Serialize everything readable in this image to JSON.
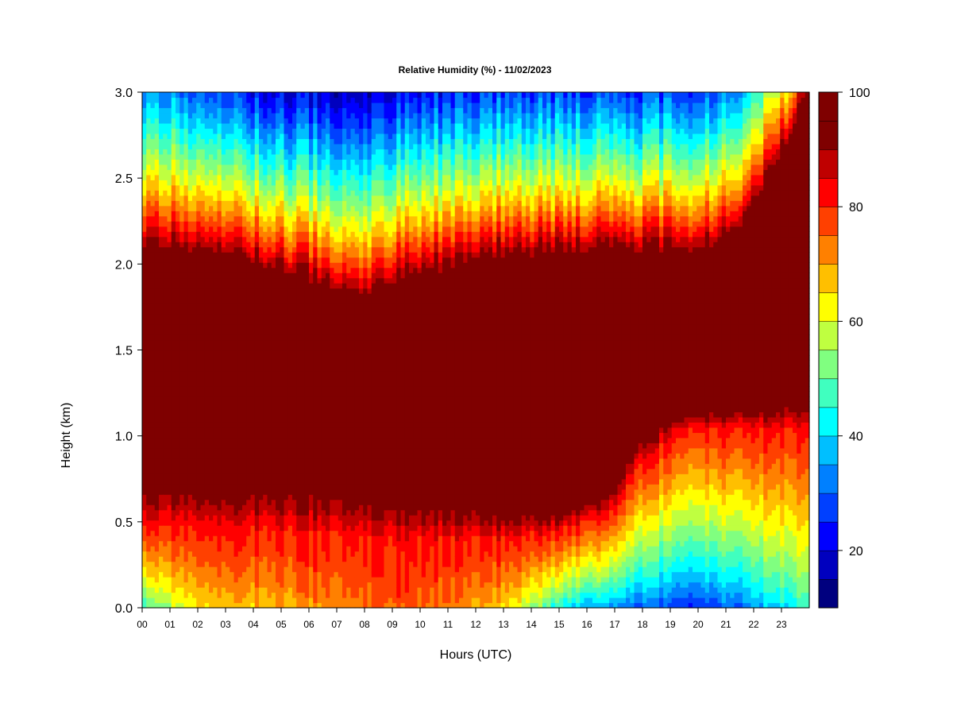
{
  "chart_data": {
    "type": "heatmap",
    "title": "Relative Humidity (%) - 11/02/2023",
    "xlabel": "Hours (UTC)",
    "ylabel": "Height (km)",
    "xlim": [
      0,
      24
    ],
    "ylim": [
      0,
      3
    ],
    "x_ticks": [
      "00",
      "01",
      "02",
      "03",
      "04",
      "05",
      "06",
      "07",
      "08",
      "09",
      "10",
      "11",
      "12",
      "13",
      "14",
      "15",
      "16",
      "17",
      "18",
      "19",
      "20",
      "21",
      "22",
      "23"
    ],
    "y_ticks": [
      "0.0",
      "0.5",
      "1.0",
      "1.5",
      "2.0",
      "2.5",
      "3.0"
    ],
    "colorbar": {
      "min": 10,
      "max": 100,
      "step": 5,
      "tick_labels": [
        "20",
        "40",
        "60",
        "80",
        "100"
      ],
      "tick_values": [
        20,
        40,
        60,
        80,
        100
      ],
      "colors": [
        "#00007F",
        "#0000BF",
        "#0000FF",
        "#0040FF",
        "#0080FF",
        "#00BFFF",
        "#00FFFF",
        "#40FFBF",
        "#80FF80",
        "#BFFF40",
        "#FFFF00",
        "#FFBF00",
        "#FF8000",
        "#FF4000",
        "#FF0000",
        "#BF0000",
        "#7F0000",
        "#7F0000"
      ]
    },
    "profile_model": {
      "hours": [
        0,
        1,
        2,
        3,
        4,
        5,
        6,
        7,
        8,
        9,
        10,
        11,
        12,
        13,
        14,
        15,
        16,
        17,
        18,
        19,
        20,
        21,
        22,
        23,
        24
      ],
      "saturated_top_km": [
        2.05,
        2.05,
        2.02,
        2.0,
        1.97,
        1.93,
        1.88,
        1.82,
        1.78,
        1.85,
        1.9,
        1.95,
        2.0,
        2.02,
        2.03,
        2.04,
        2.05,
        2.05,
        2.05,
        2.05,
        2.06,
        2.1,
        2.3,
        2.6,
        2.95
      ],
      "moist_transition_km": [
        0.5,
        0.5,
        0.5,
        0.48,
        0.46,
        0.46,
        0.44,
        0.42,
        0.4,
        0.4,
        0.4,
        0.4,
        0.4,
        0.4,
        0.42,
        0.45,
        0.5,
        0.6,
        0.85,
        1.0,
        1.05,
        1.05,
        1.05,
        1.05,
        1.05
      ],
      "saturated_base_km": [
        0.8,
        0.8,
        0.78,
        0.78,
        0.78,
        0.78,
        0.78,
        0.76,
        0.72,
        0.7,
        0.7,
        0.68,
        0.65,
        0.6,
        0.6,
        0.6,
        0.65,
        0.78,
        1.05,
        1.15,
        1.18,
        1.18,
        1.2,
        1.22,
        1.25
      ],
      "surface_rh": [
        45,
        55,
        62,
        65,
        66,
        68,
        70,
        72,
        74,
        76,
        74,
        72,
        70,
        65,
        55,
        42,
        35,
        32,
        28,
        25,
        25,
        28,
        33,
        40,
        45
      ],
      "top_rh": [
        30,
        30,
        25,
        22,
        20,
        18,
        17,
        16,
        16,
        18,
        20,
        22,
        24,
        25,
        25,
        25,
        25,
        24,
        24,
        25,
        26,
        28,
        40,
        60,
        75
      ]
    }
  }
}
